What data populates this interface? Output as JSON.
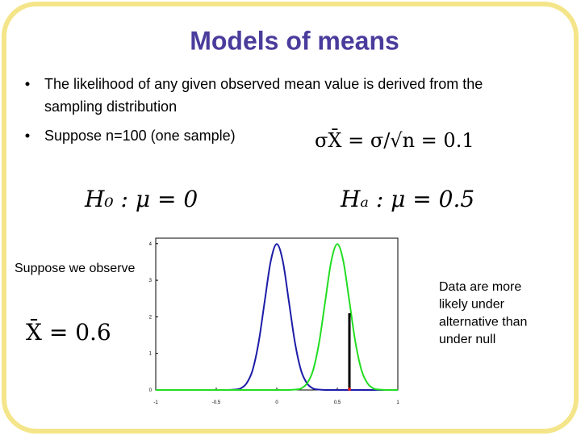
{
  "slide": {
    "title": "Models of means",
    "bullets": [
      "The likelihood of any given observed mean value is derived from the",
      "sampling distribution",
      "Suppose n=100 (one sample)"
    ],
    "formula_se": "σX̄ = σ/√n = 0.1",
    "h0": "H₀ : μ = 0",
    "ha": "Hₐ : μ = 0.5",
    "observe": "Suppose we observe",
    "xbar": "X̄ = 0.6",
    "note": [
      "Data are more",
      "likely under",
      "alternative than",
      "under null"
    ]
  },
  "chart_data": {
    "type": "line",
    "x": [
      -1,
      -0.95,
      -0.9,
      -0.85,
      -0.8,
      -0.75,
      -0.7,
      -0.65,
      -0.6,
      -0.55,
      -0.5,
      -0.45,
      -0.4,
      -0.35,
      -0.3,
      -0.25,
      -0.2,
      -0.15,
      -0.1,
      -0.05,
      0,
      0.05,
      0.1,
      0.15,
      0.2,
      0.25,
      0.3,
      0.35,
      0.4,
      0.45,
      0.5,
      0.55,
      0.6,
      0.65,
      0.7,
      0.75,
      0.8,
      0.85,
      0.9,
      0.95,
      1
    ],
    "series": [
      {
        "color": "#1c1ca8",
        "values": [
          0,
          0,
          0,
          0,
          0,
          0,
          0,
          0,
          0,
          0,
          0,
          0,
          0,
          0.01,
          0.04,
          0.18,
          0.54,
          1.3,
          2.42,
          3.52,
          3.99,
          3.52,
          2.42,
          1.3,
          0.54,
          0.18,
          0.04,
          0.01,
          0,
          0,
          0,
          0,
          0,
          0,
          0,
          0,
          0,
          0,
          0,
          0,
          0
        ]
      },
      {
        "color": "#22dd22",
        "values": [
          0,
          0,
          0,
          0,
          0,
          0,
          0,
          0,
          0,
          0,
          0,
          0,
          0,
          0,
          0,
          0,
          0,
          0,
          0,
          0,
          0,
          0,
          0,
          0.01,
          0.04,
          0.18,
          0.54,
          1.3,
          2.42,
          3.52,
          3.99,
          3.52,
          2.42,
          1.3,
          0.54,
          0.18,
          0.04,
          0.01,
          0,
          0,
          0
        ]
      }
    ],
    "observed": {
      "x": 0.6,
      "y": 2.1
    },
    "xlim": [
      -1,
      1
    ],
    "xticks": [
      -1,
      -0.5,
      0,
      0.5,
      1
    ],
    "ylim": [
      0,
      4.15
    ],
    "yticks": [
      0,
      1,
      2,
      3,
      4
    ]
  }
}
